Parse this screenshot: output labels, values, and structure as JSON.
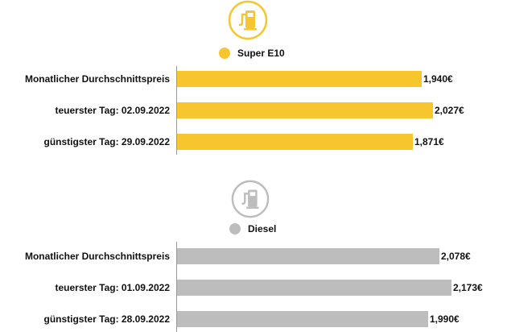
{
  "chart_data": [
    {
      "type": "bar",
      "orientation": "horizontal",
      "legend": "Super E10",
      "icon": "fuel-pump-icon",
      "color": "#F7C62F",
      "icon_ring_color": "#F7C62F",
      "categories": [
        "Monatlicher Durchschnittspreis",
        "teuerster Tag: 02.09.2022",
        "günstigster Tag: 29.09.2022"
      ],
      "values": [
        1.94,
        2.027,
        1.871
      ],
      "value_labels": [
        "1,940€",
        "2,027€",
        "1,871€"
      ],
      "xlim": [
        0,
        2.2
      ]
    },
    {
      "type": "bar",
      "orientation": "horizontal",
      "legend": "Diesel",
      "icon": "fuel-pump-icon",
      "color": "#BDBDBD",
      "icon_ring_color": "#BDBDBD",
      "categories": [
        "Monatlicher Durchschnittspreis",
        "teuerster Tag: 01.09.2022",
        "günstigster Tag: 28.09.2022"
      ],
      "values": [
        2.078,
        2.173,
        1.99
      ],
      "value_labels": [
        "2,078€",
        "2,173€",
        "1,990€"
      ],
      "xlim": [
        0,
        2.2
      ]
    }
  ]
}
